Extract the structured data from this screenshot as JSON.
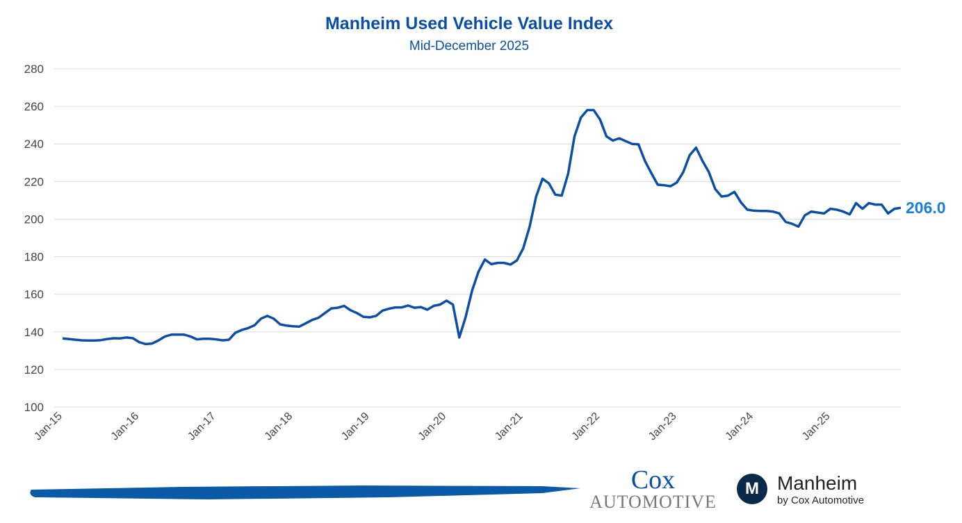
{
  "chart_data": {
    "type": "line",
    "title": "Manheim Used Vehicle Value Index",
    "subtitle": "Mid-December 2025",
    "xlabel": "",
    "ylabel": "",
    "ylim": [
      100,
      280
    ],
    "yticks": [
      100,
      120,
      140,
      160,
      180,
      200,
      220,
      240,
      260,
      280
    ],
    "xticks": [
      "Jan-15",
      "Jan-16",
      "Jan-17",
      "Jan-18",
      "Jan-19",
      "Jan-20",
      "Jan-21",
      "Jan-22",
      "Jan-23",
      "Jan-24",
      "Jan-25"
    ],
    "grid": true,
    "line_color": "#0a4fa5",
    "end_label": "206.0",
    "end_label_color": "#1a7fd9",
    "values": [
      136.5,
      136.2,
      135.8,
      135.5,
      135.4,
      135.4,
      135.6,
      136.2,
      136.6,
      136.5,
      137,
      136.6,
      134.5,
      133.5,
      133.8,
      135.5,
      137.5,
      138.5,
      138.5,
      138.5,
      137.5,
      136,
      136.3,
      136.3,
      136,
      135.5,
      135.8,
      139.5,
      141,
      142,
      143.5,
      147,
      148.5,
      147,
      144,
      143.3,
      143,
      142.8,
      144.5,
      146.3,
      147.5,
      150,
      152.5,
      152.8,
      153.8,
      151.5,
      150,
      148,
      147.7,
      148.5,
      151.3,
      152.3,
      153,
      153,
      154,
      152.8,
      153.2,
      151.8,
      153.8,
      154.5,
      156.6,
      154.5,
      137,
      148,
      162,
      172,
      178.5,
      176,
      176.7,
      176.7,
      175.8,
      178,
      184.5,
      196,
      212,
      221.5,
      219,
      213,
      212.5,
      224,
      244,
      254,
      258,
      258,
      253,
      244,
      241.8,
      243,
      241.5,
      240,
      239.8,
      231,
      224.5,
      218.3,
      218,
      217.5,
      219.5,
      225,
      234,
      238,
      231,
      225,
      216,
      212,
      212.5,
      214.5,
      209,
      205,
      204.5,
      204.3,
      204.3,
      204,
      203,
      198.5,
      197.5,
      196,
      202,
      204,
      203.5,
      203,
      205.5,
      205,
      204,
      202.5,
      208.5,
      205.5,
      208.5,
      207.7,
      207.7,
      203,
      205.5,
      206
    ]
  },
  "footer": {
    "cox_line1": "Cox",
    "cox_line2": "AUTOMOTIVE",
    "manheim_mark": "M",
    "manheim_name": "Manheim",
    "manheim_tagline": "by Cox Automotive"
  }
}
